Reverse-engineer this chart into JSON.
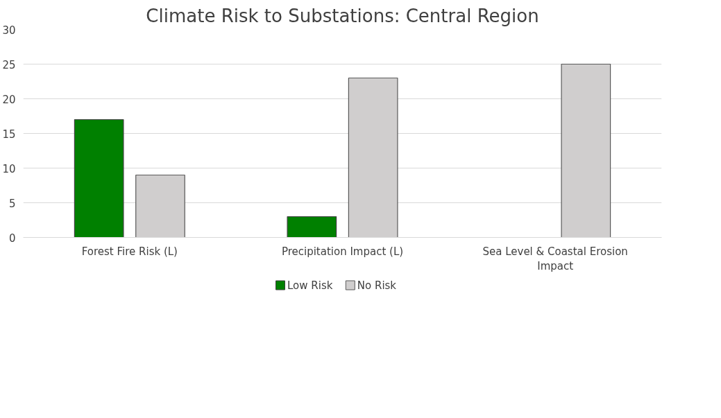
{
  "chart_data": {
    "type": "bar",
    "title": "Climate Risk to Substations: Central Region",
    "categories": [
      "Forest Fire Risk (L)",
      "Precipitation Impact (L)",
      "Sea Level & Coastal Erosion Impact"
    ],
    "series": [
      {
        "name": "Low Risk",
        "color": "#008000",
        "values": [
          17,
          3,
          null
        ]
      },
      {
        "name": "No Risk",
        "color": "#d0cece",
        "values": [
          9,
          23,
          25
        ]
      }
    ],
    "ylim": [
      0,
      30
    ],
    "yticks": [
      0,
      5,
      10,
      15,
      20,
      25,
      30
    ],
    "grid": "y",
    "legend": "bottom"
  }
}
